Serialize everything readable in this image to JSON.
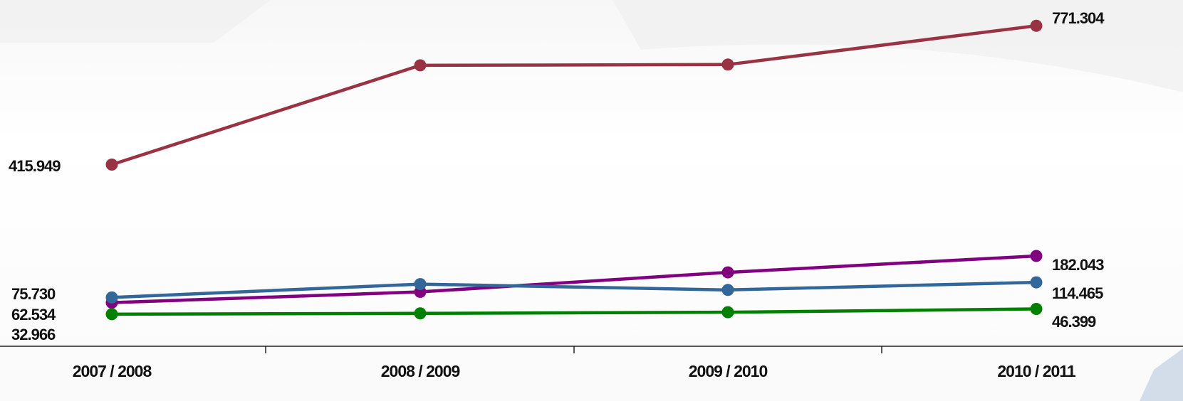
{
  "chart_data": {
    "type": "line",
    "title": "",
    "xlabel": "",
    "ylabel": "",
    "categories": [
      "2007 / 2008",
      "2008 / 2009",
      "2009 / 2010",
      "2010 / 2011"
    ],
    "ylim": [
      0,
      850
    ],
    "grid": false,
    "legend": "none",
    "series": [
      {
        "color": "#993344",
        "values": [
          415.949,
          670,
          672,
          771.304
        ],
        "labels": [
          "415.949",
          "",
          "",
          "771.304"
        ]
      },
      {
        "color": "#800080",
        "values": [
          62.534,
          90,
          140,
          182.043
        ],
        "labels": [
          "62.534",
          "",
          "",
          "182.043"
        ]
      },
      {
        "color": "#336699",
        "values": [
          75.73,
          110,
          95,
          114.465
        ],
        "labels": [
          "75.730",
          "",
          "",
          "114.465"
        ]
      },
      {
        "color": "#008000",
        "values": [
          32.966,
          35,
          38,
          46.399
        ],
        "labels": [
          "32.966",
          "",
          "",
          "46.399"
        ]
      }
    ]
  }
}
